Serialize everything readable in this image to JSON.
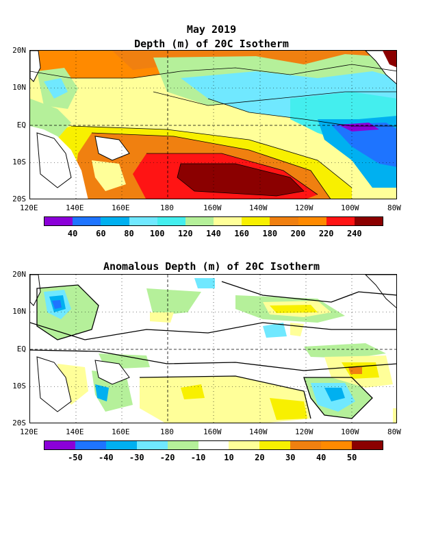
{
  "top": {
    "title_line1": "May 2019",
    "title_line2": "Depth (m) of 20C Isotherm",
    "colorbar_labels": [
      "40",
      "60",
      "80",
      "100",
      "120",
      "140",
      "160",
      "180",
      "200",
      "220",
      "240"
    ],
    "colorbar_colors": [
      "#8b00d8",
      "#1e74ff",
      "#00b0f0",
      "#70e8ff",
      "#44eeee",
      "#b5f09a",
      "#ffff99",
      "#f8f000",
      "#f08010",
      "#ff8a00",
      "#ff1414",
      "#8b0000"
    ]
  },
  "bottom": {
    "title": "Anomalous Depth (m) of 20C Isotherm",
    "colorbar_labels": [
      "-50",
      "-40",
      "-30",
      "-20",
      "-10",
      "10",
      "20",
      "30",
      "40",
      "50"
    ],
    "colorbar_colors": [
      "#8b00d8",
      "#1e74ff",
      "#00b0f0",
      "#70e8ff",
      "#b5f09a",
      "#ffffff",
      "#ffff99",
      "#f8f000",
      "#f08010",
      "#ff8a00",
      "#8b0000"
    ]
  },
  "axes": {
    "x_ticks": [
      "120E",
      "140E",
      "160E",
      "180",
      "160W",
      "140W",
      "120W",
      "100W",
      "80W"
    ],
    "y_ticks": [
      "20N",
      "10N",
      "EQ",
      "10S",
      "20S"
    ]
  }
}
